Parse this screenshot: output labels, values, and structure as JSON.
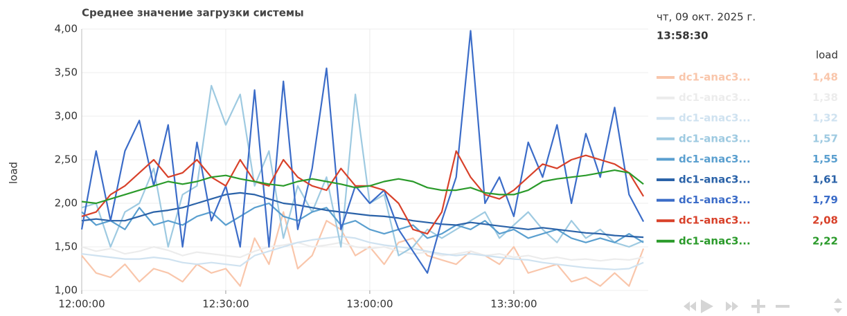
{
  "chart_data": {
    "type": "line",
    "title": "Среднее значение загрузки системы",
    "y_label": "load",
    "legend_header": "load",
    "date": "чт, 09 окт. 2025 г.",
    "time": "13:58:30",
    "x": [
      "12:00:00",
      "12:03:00",
      "12:06:00",
      "12:09:00",
      "12:12:00",
      "12:15:00",
      "12:18:00",
      "12:21:00",
      "12:24:00",
      "12:27:00",
      "12:30:00",
      "12:33:00",
      "12:36:00",
      "12:39:00",
      "12:42:00",
      "12:45:00",
      "12:48:00",
      "12:51:00",
      "12:54:00",
      "12:57:00",
      "13:00:00",
      "13:03:00",
      "13:06:00",
      "13:09:00",
      "13:12:00",
      "13:15:00",
      "13:18:00",
      "13:21:00",
      "13:24:00",
      "13:27:00",
      "13:30:00",
      "13:33:00",
      "13:36:00",
      "13:39:00",
      "13:42:00",
      "13:45:00",
      "13:48:00",
      "13:51:00",
      "13:54:00",
      "13:57:00"
    ],
    "xlim": [
      "12:00:00",
      "13:58:00"
    ],
    "xticks": [
      "12:00:00",
      "12:30:00",
      "13:00:00",
      "13:30:00"
    ],
    "ylim": [
      1,
      4
    ],
    "yticks": [
      {
        "value": 1,
        "label": "1,00"
      },
      {
        "value": 1.5,
        "label": "1,50"
      },
      {
        "value": 2,
        "label": "2,00"
      },
      {
        "value": 2.5,
        "label": "2,50"
      },
      {
        "value": 3,
        "label": "3,00"
      },
      {
        "value": 3.5,
        "label": "3,50"
      },
      {
        "value": 4,
        "label": "4,00"
      }
    ],
    "grid": true,
    "series": [
      {
        "name": "dc1-anac3...",
        "color": "#f9c6ab",
        "last": 1.48,
        "last_label": "1,48",
        "values": [
          1.4,
          1.2,
          1.15,
          1.3,
          1.1,
          1.25,
          1.2,
          1.1,
          1.3,
          1.2,
          1.25,
          1.05,
          1.6,
          1.3,
          1.9,
          1.25,
          1.4,
          1.8,
          1.7,
          1.4,
          1.5,
          1.3,
          1.55,
          1.6,
          1.4,
          1.35,
          1.3,
          1.45,
          1.4,
          1.3,
          1.5,
          1.2,
          1.25,
          1.3,
          1.1,
          1.15,
          1.05,
          1.2,
          1.05,
          1.48
        ]
      },
      {
        "name": "dc1-anac3...",
        "color": "#ececec",
        "last": 1.38,
        "last_label": "1,38",
        "values": [
          1.5,
          1.45,
          1.48,
          1.42,
          1.45,
          1.5,
          1.46,
          1.4,
          1.44,
          1.42,
          1.4,
          1.38,
          1.45,
          1.5,
          1.52,
          1.55,
          1.5,
          1.52,
          1.55,
          1.5,
          1.48,
          1.5,
          1.45,
          1.42,
          1.44,
          1.4,
          1.42,
          1.45,
          1.4,
          1.42,
          1.38,
          1.4,
          1.36,
          1.38,
          1.35,
          1.36,
          1.34,
          1.36,
          1.35,
          1.38
        ]
      },
      {
        "name": "dc1-anac3...",
        "color": "#cfe2f0",
        "last": 1.32,
        "last_label": "1,32",
        "values": [
          1.42,
          1.4,
          1.38,
          1.36,
          1.36,
          1.38,
          1.36,
          1.32,
          1.3,
          1.32,
          1.3,
          1.28,
          1.4,
          1.45,
          1.5,
          1.55,
          1.58,
          1.6,
          1.62,
          1.6,
          1.55,
          1.52,
          1.5,
          1.48,
          1.45,
          1.42,
          1.4,
          1.42,
          1.4,
          1.38,
          1.36,
          1.35,
          1.32,
          1.3,
          1.28,
          1.26,
          1.25,
          1.24,
          1.25,
          1.32
        ]
      },
      {
        "name": "dc1-anac3...",
        "color": "#9ecae1",
        "last": 1.57,
        "last_label": "1,57",
        "values": [
          1.95,
          2.0,
          1.5,
          1.9,
          2.0,
          2.4,
          1.5,
          2.1,
          2.2,
          3.35,
          2.9,
          3.25,
          2.2,
          2.6,
          1.6,
          2.2,
          1.9,
          2.3,
          1.5,
          3.25,
          2.0,
          2.1,
          1.4,
          1.5,
          1.7,
          1.6,
          1.7,
          1.8,
          1.9,
          1.6,
          1.75,
          1.9,
          1.7,
          1.55,
          1.8,
          1.6,
          1.7,
          1.55,
          1.5,
          1.57
        ]
      },
      {
        "name": "dc1-anac3...",
        "color": "#5a9fcf",
        "last": 1.55,
        "last_label": "1,55",
        "values": [
          1.9,
          1.75,
          1.8,
          1.7,
          1.95,
          1.75,
          1.8,
          1.75,
          1.85,
          1.9,
          1.75,
          1.85,
          1.95,
          2.0,
          1.85,
          1.8,
          1.9,
          1.95,
          1.75,
          1.8,
          1.7,
          1.65,
          1.7,
          1.75,
          1.6,
          1.65,
          1.75,
          1.7,
          1.8,
          1.65,
          1.7,
          1.6,
          1.65,
          1.7,
          1.6,
          1.55,
          1.6,
          1.55,
          1.65,
          1.55
        ]
      },
      {
        "name": "dc1-anac3...",
        "color": "#2a62a8",
        "last": 1.61,
        "last_label": "1,61",
        "values": [
          1.8,
          1.82,
          1.8,
          1.8,
          1.85,
          1.9,
          1.92,
          1.95,
          2.0,
          2.05,
          2.1,
          2.12,
          2.1,
          2.05,
          2.0,
          1.98,
          1.95,
          1.92,
          1.9,
          1.88,
          1.86,
          1.85,
          1.83,
          1.8,
          1.78,
          1.76,
          1.75,
          1.78,
          1.76,
          1.74,
          1.72,
          1.7,
          1.72,
          1.7,
          1.68,
          1.66,
          1.65,
          1.63,
          1.62,
          1.61
        ]
      },
      {
        "name": "dc1-anac3...",
        "color": "#3b6cc8",
        "last": 1.79,
        "last_label": "1,79",
        "values": [
          1.7,
          2.6,
          1.8,
          2.6,
          2.95,
          2.2,
          2.9,
          1.5,
          2.7,
          1.8,
          2.2,
          1.5,
          3.3,
          1.5,
          3.4,
          1.7,
          2.4,
          3.55,
          1.7,
          2.2,
          2.0,
          2.15,
          1.7,
          1.45,
          1.2,
          1.8,
          2.3,
          3.98,
          2.0,
          2.3,
          1.85,
          2.7,
          2.3,
          2.9,
          2.0,
          2.8,
          2.3,
          3.1,
          2.1,
          1.79
        ]
      },
      {
        "name": "dc1-anac3...",
        "color": "#d8412a",
        "last": 2.08,
        "last_label": "2,08",
        "values": [
          1.85,
          1.9,
          2.1,
          2.2,
          2.35,
          2.5,
          2.3,
          2.35,
          2.5,
          2.3,
          2.2,
          2.5,
          2.25,
          2.2,
          2.5,
          2.3,
          2.2,
          2.15,
          2.4,
          2.2,
          2.2,
          2.15,
          2.0,
          1.7,
          1.65,
          1.9,
          2.6,
          2.3,
          2.1,
          2.05,
          2.15,
          2.3,
          2.45,
          2.4,
          2.5,
          2.55,
          2.5,
          2.45,
          2.35,
          2.08
        ]
      },
      {
        "name": "dc1-anac3...",
        "color": "#2a9a2a",
        "last": 2.22,
        "last_label": "2,22",
        "values": [
          2.02,
          2.0,
          2.05,
          2.1,
          2.15,
          2.2,
          2.25,
          2.22,
          2.25,
          2.3,
          2.32,
          2.28,
          2.25,
          2.22,
          2.2,
          2.25,
          2.28,
          2.25,
          2.22,
          2.18,
          2.2,
          2.25,
          2.28,
          2.25,
          2.18,
          2.15,
          2.15,
          2.18,
          2.12,
          2.1,
          2.1,
          2.15,
          2.25,
          2.28,
          2.3,
          2.32,
          2.35,
          2.38,
          2.35,
          2.22
        ]
      }
    ]
  }
}
